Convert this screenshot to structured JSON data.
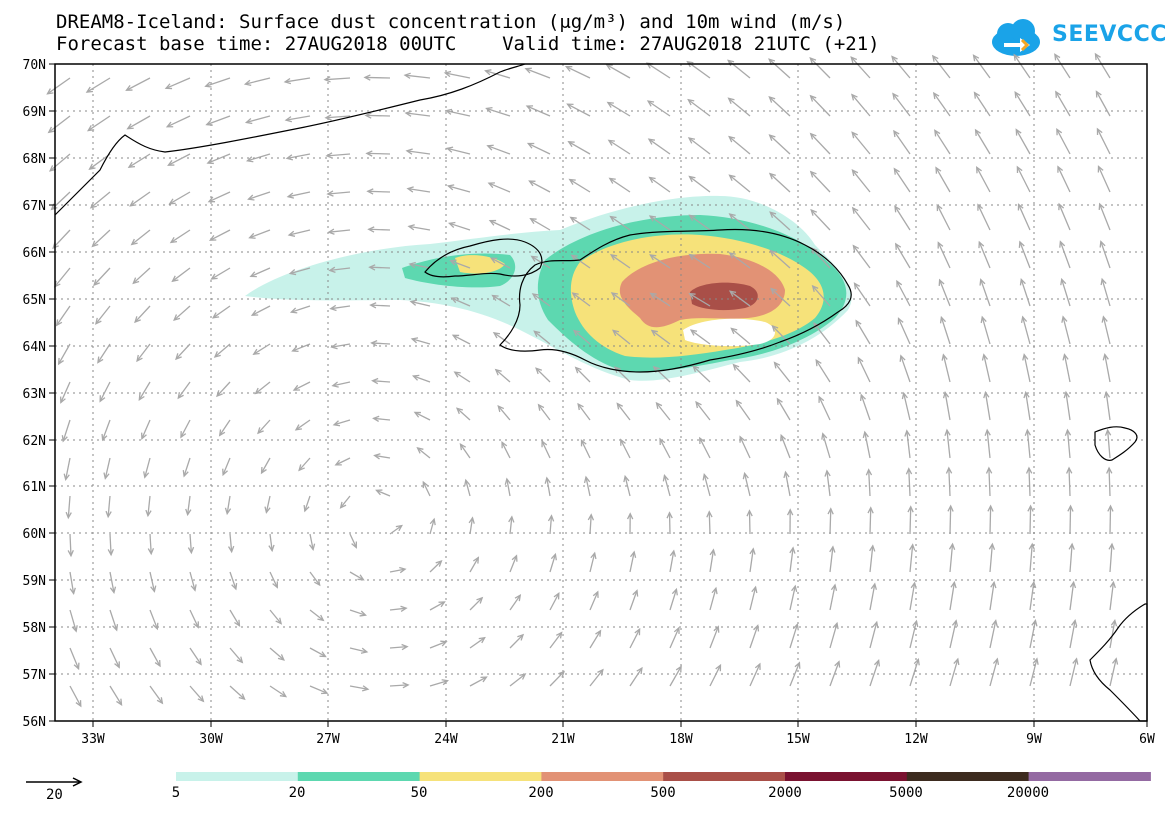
{
  "header": {
    "title_line1": "DREAM8-Iceland: Surface dust concentration (μg/m³) and 10m wind (m/s)",
    "title_line2": "Forecast base time: 27AUG2018 00UTC    Valid time: 27AUG2018 21UTC (+21)"
  },
  "logo": {
    "text": "SEEVCCC",
    "icon": "cloud-arrow-icon",
    "color": "#1aa3e8"
  },
  "axes": {
    "lat_labels": [
      "70N",
      "69N",
      "68N",
      "67N",
      "66N",
      "65N",
      "64N",
      "63N",
      "62N",
      "61N",
      "60N",
      "59N",
      "58N",
      "57N",
      "56N"
    ],
    "lon_labels": [
      "33W",
      "30W",
      "27W",
      "24W",
      "21W",
      "18W",
      "15W",
      "12W",
      "9W",
      "6W"
    ]
  },
  "legend": {
    "wind_reference_value": "20",
    "colorbar_colors": [
      "#c8f2ea",
      "#5dd8b0",
      "#f6e27a",
      "#e29275",
      "#a94f48",
      "#7a1230",
      "#3d2b1f",
      "#946aa2"
    ],
    "colorbar_labels": [
      "5",
      "20",
      "50",
      "200",
      "500",
      "2000",
      "5000",
      "20000"
    ]
  },
  "colors": {
    "wind_arrow": "#a9a9a9",
    "coastline": "#000000",
    "grid": "#888888"
  }
}
